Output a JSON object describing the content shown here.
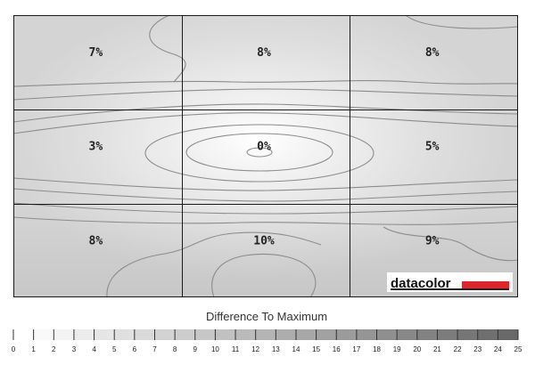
{
  "chart_data": {
    "type": "heatmap",
    "title": "",
    "rows": 3,
    "cols": 3,
    "cells": [
      [
        "7%",
        "8%",
        "8%"
      ],
      [
        "3%",
        "0%",
        "5%"
      ],
      [
        "8%",
        "10%",
        "9%"
      ]
    ],
    "values": [
      [
        7,
        8,
        8
      ],
      [
        3,
        0,
        5
      ],
      [
        8,
        10,
        9
      ]
    ],
    "scale": {
      "title": "Difference To Maximum",
      "min": 0,
      "max": 25,
      "ticks": [
        "0",
        "1",
        "2",
        "3",
        "4",
        "5",
        "6",
        "7",
        "8",
        "9",
        "10",
        "11",
        "12",
        "13",
        "14",
        "15",
        "16",
        "17",
        "18",
        "19",
        "20",
        "21",
        "22",
        "23",
        "24",
        "25"
      ]
    },
    "colors": {
      "panel_fill": "#d9d9d9",
      "center_fill": "#ffffff",
      "contour": "#8c8c8c",
      "grid": "#1a1a1a",
      "logo_bar": "#e0262b"
    },
    "logo": {
      "text": "datacolor"
    }
  }
}
